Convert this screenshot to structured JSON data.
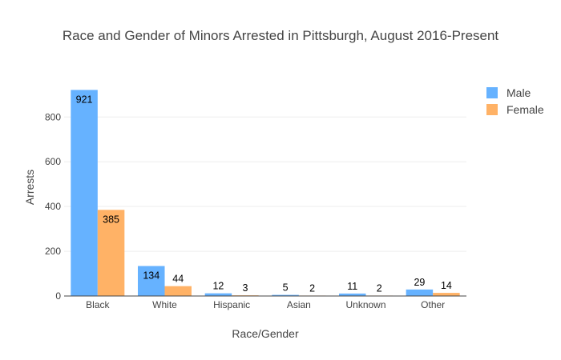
{
  "chart_data": {
    "type": "bar",
    "title": "Race and Gender of Minors Arrested in Pittsburgh, August 2016-Present",
    "xlabel": "Race/Gender",
    "ylabel": "Arrests",
    "categories": [
      "Black",
      "White",
      "Hispanic",
      "Asian",
      "Unknown",
      "Other"
    ],
    "series": [
      {
        "name": "Male",
        "color": "#66b2ff",
        "values": [
          921,
          134,
          12,
          5,
          11,
          29
        ]
      },
      {
        "name": "Female",
        "color": "#ffb266",
        "values": [
          385,
          44,
          3,
          2,
          2,
          14
        ]
      }
    ],
    "ylim": [
      0,
      969
    ],
    "yticks": [
      0,
      200,
      400,
      600,
      800
    ],
    "grid": true,
    "legend": "top-right"
  }
}
